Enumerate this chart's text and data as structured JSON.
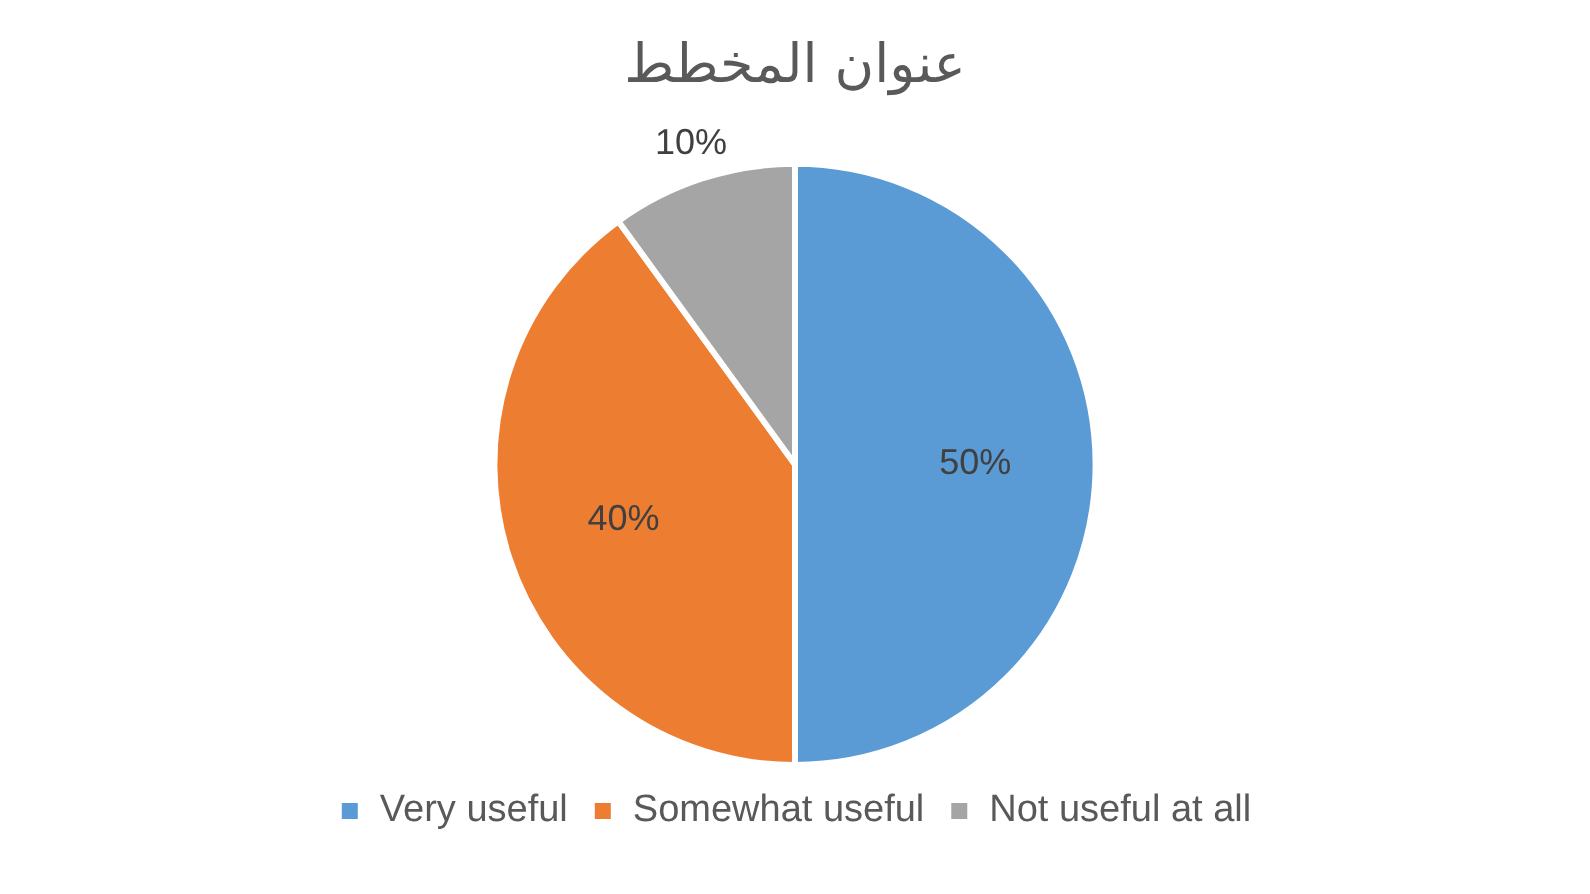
{
  "chart_data": {
    "type": "pie",
    "title": "عنوان المخطط",
    "categories": [
      "Very useful",
      "Somewhat useful",
      "Not useful at all"
    ],
    "values": [
      50,
      40,
      10
    ],
    "colors": [
      "#5b9bd5",
      "#ed7d31",
      "#a5a5a5"
    ],
    "value_labels": [
      "50%",
      "40%",
      "10%"
    ],
    "legend": "bottom"
  }
}
